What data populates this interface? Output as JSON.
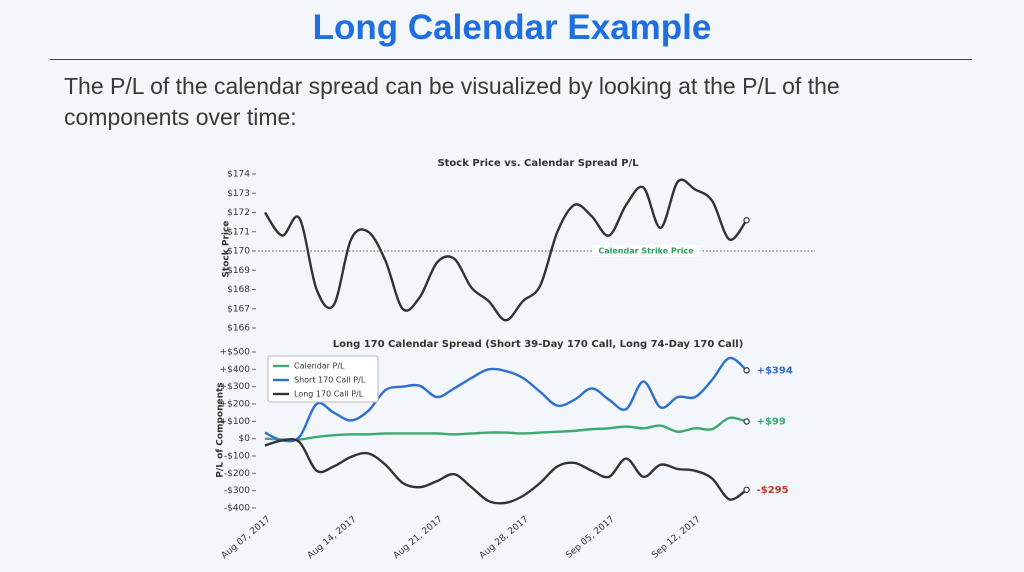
{
  "slide": {
    "title": "Long Calendar Example",
    "text_lines": [
      "The P/L of the calendar spread can be visualized by looking at the P/L of the",
      "components over time:"
    ]
  },
  "chart_data": [
    {
      "type": "line",
      "title": "Stock Price vs. Calendar Spread P/L",
      "y_label": "Stock Price",
      "series": [
        {
          "name": "Stock Price",
          "color": "#333333",
          "values": [
            172.0,
            170.8,
            171.7,
            168.0,
            167.2,
            170.6,
            171.0,
            169.5,
            167.0,
            167.6,
            169.4,
            169.6,
            168.1,
            167.4,
            166.4,
            167.4,
            168.2,
            171.0,
            172.4,
            171.8,
            170.8,
            172.4,
            173.3,
            171.2,
            173.6,
            173.2,
            172.6,
            170.6,
            171.6
          ]
        }
      ],
      "reference_line": {
        "value": 170,
        "label": "Calendar Strike Price",
        "color": "#2e9e5e"
      },
      "ylim": [
        165.8,
        174.4
      ],
      "yticks": [
        {
          "value": 166,
          "label": "$166"
        },
        {
          "value": 167,
          "label": "$167"
        },
        {
          "value": 168,
          "label": "$168"
        },
        {
          "value": 169,
          "label": "$169"
        },
        {
          "value": 170,
          "label": "$170"
        },
        {
          "value": 171,
          "label": "$171"
        },
        {
          "value": 172,
          "label": "$172"
        },
        {
          "value": 173,
          "label": "$173"
        },
        {
          "value": 174,
          "label": "$174"
        }
      ]
    },
    {
      "type": "line",
      "title": "Long 170 Calendar Spread (Short 39-Day 170 Call, Long 74-Day 170 Call)",
      "y_label": "P/L of Components",
      "categories": [
        "Aug 07, 2017",
        null,
        null,
        null,
        null,
        "Aug 14, 2017",
        null,
        null,
        null,
        null,
        "Aug 21, 2017",
        null,
        null,
        null,
        null,
        "Aug 28, 2017",
        null,
        null,
        null,
        null,
        "Sep 05, 2017",
        null,
        null,
        null,
        null,
        "Sep 12, 2017",
        null,
        null,
        null
      ],
      "legend": "upper left",
      "series": [
        {
          "name": "Calendar P/L",
          "color": "#3aaa6e",
          "values": [
            0,
            -5,
            -5,
            10,
            20,
            25,
            25,
            30,
            30,
            30,
            30,
            25,
            30,
            35,
            35,
            30,
            35,
            40,
            45,
            55,
            60,
            70,
            60,
            75,
            40,
            60,
            55,
            120,
            99
          ],
          "value_labels": [
            null,
            null,
            null,
            null,
            null,
            null,
            null,
            null,
            null,
            null,
            null,
            null,
            null,
            null,
            null,
            null,
            null,
            null,
            null,
            null,
            null,
            null,
            null,
            null,
            null,
            null,
            null,
            null,
            "+$99"
          ]
        },
        {
          "name": "Short 170 Call P/L",
          "color": "#2f6fcf",
          "values": [
            35,
            -10,
            10,
            200,
            150,
            105,
            160,
            280,
            300,
            305,
            240,
            290,
            350,
            400,
            390,
            350,
            270,
            190,
            225,
            290,
            225,
            170,
            330,
            180,
            240,
            240,
            340,
            465,
            394
          ],
          "value_labels": [
            null,
            null,
            null,
            null,
            null,
            null,
            null,
            null,
            null,
            null,
            null,
            null,
            null,
            null,
            null,
            null,
            null,
            null,
            null,
            null,
            null,
            null,
            null,
            null,
            null,
            null,
            null,
            null,
            "+$394"
          ]
        },
        {
          "name": "Long 170 Call P/L",
          "color": "#333333",
          "values": [
            -40,
            -10,
            -20,
            -185,
            -160,
            -105,
            -85,
            -150,
            -255,
            -280,
            -245,
            -205,
            -280,
            -360,
            -370,
            -330,
            -255,
            -160,
            -140,
            -185,
            -220,
            -115,
            -220,
            -150,
            -175,
            -185,
            -230,
            -350,
            -295
          ],
          "value_labels": [
            null,
            null,
            null,
            null,
            null,
            null,
            null,
            null,
            null,
            null,
            null,
            null,
            null,
            null,
            null,
            null,
            null,
            null,
            null,
            null,
            null,
            null,
            null,
            null,
            null,
            null,
            null,
            null,
            "-$295"
          ],
          "label_color": "#c0392b"
        }
      ],
      "ylim": [
        -420,
        520
      ],
      "yticks": [
        {
          "value": -400,
          "label": "-$400"
        },
        {
          "value": -300,
          "label": "-$300"
        },
        {
          "value": -200,
          "label": "-$200"
        },
        {
          "value": -100,
          "label": "-$100"
        },
        {
          "value": 0,
          "label": "$0"
        },
        {
          "value": 100,
          "label": "+$100"
        },
        {
          "value": 200,
          "label": "+$200"
        },
        {
          "value": 300,
          "label": "+$300"
        },
        {
          "value": 400,
          "label": "+$400"
        },
        {
          "value": 500,
          "label": "+$500"
        }
      ]
    }
  ]
}
